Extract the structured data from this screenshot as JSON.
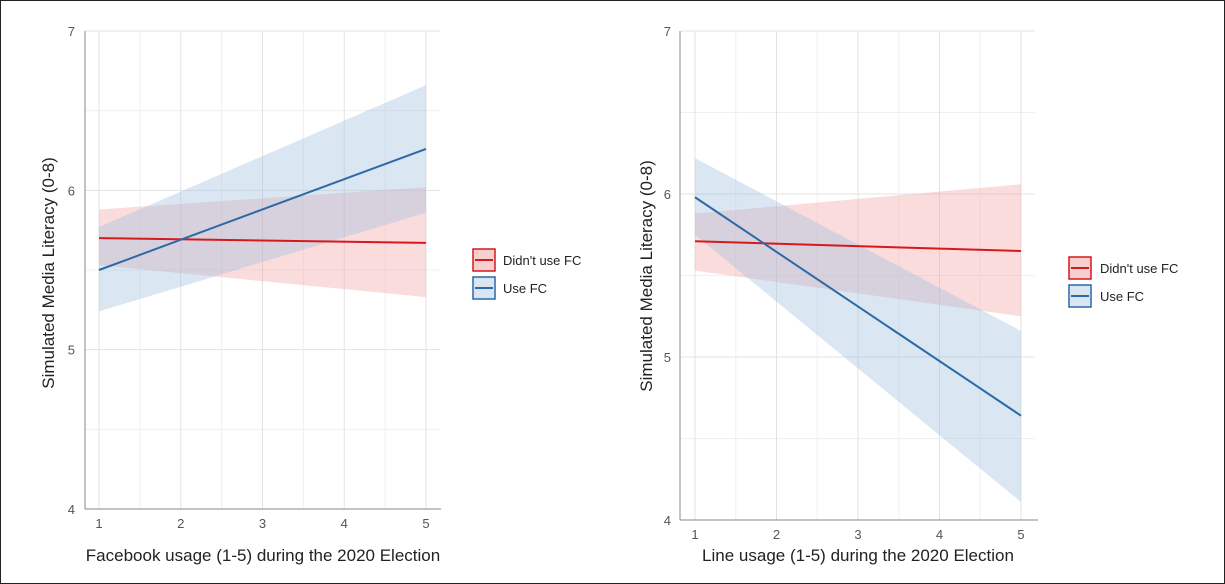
{
  "colors": {
    "didnt_use_fc": "#d7191c",
    "use_fc": "#2c6aa6",
    "ribbon_didnt": "#f4a4a6",
    "ribbon_use": "#9fbfe0"
  },
  "chart_data": [
    {
      "type": "line",
      "xlabel": "Facebook usage (1-5) during the 2020 Election",
      "ylabel": "Simulated Media Literacy (0-8)",
      "xlim": [
        1,
        5
      ],
      "ylim": [
        4,
        7
      ],
      "xticks": [
        "1",
        "2",
        "3",
        "4",
        "5"
      ],
      "yticks": [
        "4",
        "5",
        "6",
        "7"
      ],
      "grid": true,
      "legend": "right",
      "series": [
        {
          "name": "Didn't use FC",
          "x": [
            1,
            5
          ],
          "y": [
            5.7,
            5.67
          ],
          "lower": [
            5.53,
            5.33
          ],
          "upper": [
            5.88,
            6.02
          ]
        },
        {
          "name": "Use FC",
          "x": [
            1,
            5
          ],
          "y": [
            5.5,
            6.26
          ],
          "lower": [
            5.24,
            5.86
          ],
          "upper": [
            5.77,
            6.66
          ]
        }
      ]
    },
    {
      "type": "line",
      "xlabel": "Line usage (1-5) during the 2020 Election",
      "ylabel": "Simulated Media Literacy (0-8)",
      "xlim": [
        1,
        5
      ],
      "ylim": [
        4,
        7
      ],
      "xticks": [
        "1",
        "2",
        "3",
        "4",
        "5"
      ],
      "yticks": [
        "4",
        "5",
        "6",
        "7"
      ],
      "grid": true,
      "legend": "right",
      "series": [
        {
          "name": "Didn't use FC",
          "x": [
            1,
            5
          ],
          "y": [
            5.71,
            5.65
          ],
          "lower": [
            5.53,
            5.25
          ],
          "upper": [
            5.88,
            6.06
          ]
        },
        {
          "name": "Use FC",
          "x": [
            1,
            5
          ],
          "y": [
            5.98,
            4.64
          ],
          "lower": [
            5.75,
            4.11
          ],
          "upper": [
            6.22,
            5.16
          ]
        }
      ]
    }
  ]
}
